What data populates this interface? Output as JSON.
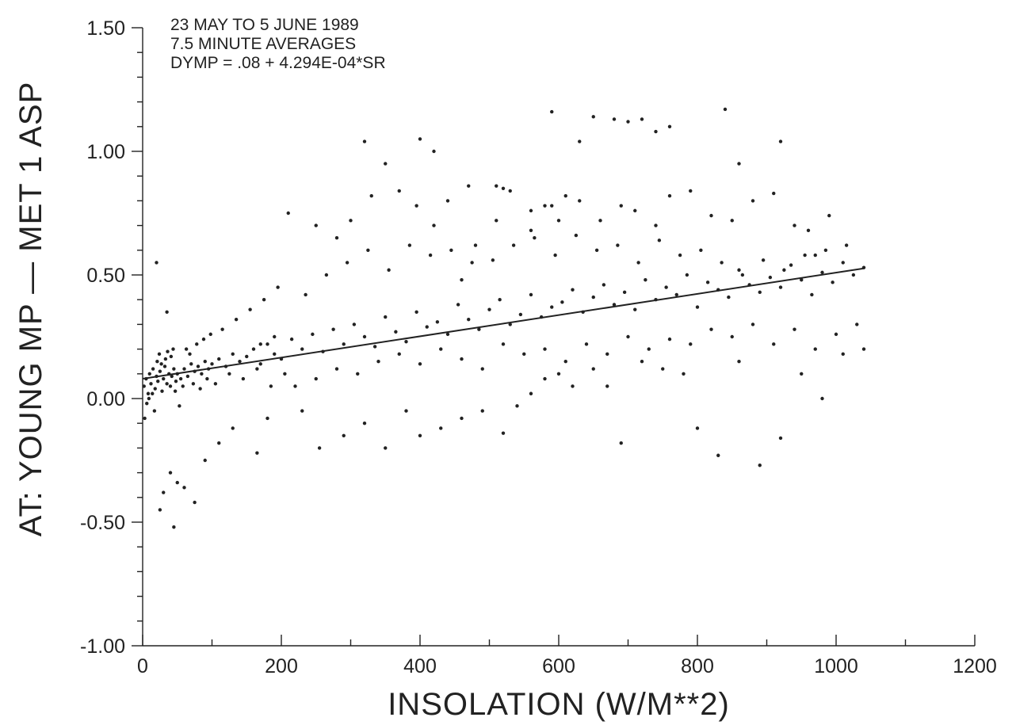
{
  "chart_data": {
    "type": "scatter",
    "xlabel": "INSOLATION (W/M**2)",
    "ylabel": "AT: YOUNG MP — MET 1 ASP",
    "annotations": [
      "23 MAY TO 5 JUNE 1989",
      "7.5 MINUTE AVERAGES",
      "DYMP = .08 + 4.294E-04*SR"
    ],
    "xlim": [
      0,
      1200
    ],
    "ylim": [
      -1.0,
      1.5
    ],
    "x_ticks": [
      0,
      200,
      400,
      600,
      800,
      1000,
      1200
    ],
    "x_tick_labels": [
      "0",
      "200",
      "400",
      "600",
      "800",
      "1000",
      "1200"
    ],
    "y_ticks": [
      -1.0,
      -0.5,
      0.0,
      0.5,
      1.0,
      1.5
    ],
    "y_tick_labels": [
      "-1.00",
      "-0.50",
      "0.00",
      "0.50",
      "1.00",
      "1.50"
    ],
    "grid": false,
    "regression": {
      "intercept": 0.08,
      "slope": 0.0004294,
      "x_range": [
        0,
        1040
      ]
    },
    "points_x": [
      2,
      5,
      8,
      10,
      12,
      15,
      18,
      20,
      22,
      25,
      28,
      30,
      32,
      35,
      38,
      40,
      42,
      45,
      48,
      50,
      55,
      60,
      65,
      70,
      75,
      80,
      85,
      90,
      95,
      100,
      110,
      120,
      130,
      140,
      150,
      160,
      170,
      180,
      190,
      200,
      215,
      230,
      245,
      260,
      275,
      290,
      305,
      320,
      335,
      350,
      365,
      380,
      395,
      410,
      425,
      440,
      455,
      470,
      485,
      500,
      515,
      530,
      545,
      560,
      575,
      590,
      605,
      620,
      635,
      650,
      665,
      680,
      695,
      710,
      725,
      740,
      755,
      770,
      785,
      800,
      815,
      830,
      845,
      860,
      875,
      890,
      905,
      920,
      935,
      950,
      965,
      980,
      995,
      1010,
      1025,
      1040,
      3,
      6,
      9,
      14,
      17,
      21,
      24,
      27,
      33,
      36,
      41,
      44,
      47,
      53,
      58,
      63,
      68,
      73,
      78,
      83,
      88,
      93,
      98,
      105,
      115,
      125,
      135,
      145,
      155,
      165,
      175,
      185,
      195,
      205,
      220,
      235,
      250,
      265,
      280,
      295,
      310,
      325,
      340,
      355,
      370,
      385,
      400,
      415,
      430,
      445,
      460,
      475,
      490,
      505,
      520,
      535,
      550,
      565,
      580,
      595,
      610,
      625,
      640,
      655,
      670,
      685,
      700,
      715,
      730,
      745,
      760,
      775,
      790,
      805,
      820,
      835,
      850,
      865,
      880,
      895,
      910,
      925,
      940,
      955,
      970,
      985,
      1000,
      1015,
      1030,
      20,
      35,
      50,
      30,
      45,
      25,
      40,
      60,
      75,
      90,
      110,
      130,
      165,
      180,
      230,
      255,
      290,
      320,
      350,
      380,
      400,
      430,
      460,
      490,
      520,
      540,
      560,
      580,
      600,
      620,
      650,
      670,
      690,
      720,
      750,
      780,
      800,
      830,
      860,
      890,
      920,
      950,
      980,
      1010,
      1040,
      170,
      190,
      210,
      250,
      280,
      300,
      330,
      370,
      395,
      420,
      440,
      470,
      510,
      530,
      560,
      590,
      610,
      630,
      660,
      690,
      710,
      740,
      760,
      790,
      820,
      850,
      880,
      910,
      940,
      960,
      990,
      510,
      560,
      590,
      650,
      700,
      760,
      840,
      320,
      400,
      480,
      580,
      630,
      720,
      350,
      420,
      460,
      520,
      600,
      680,
      740,
      860,
      920,
      970
    ],
    "points_y": [
      0.05,
      0.08,
      0.02,
      0.1,
      0.06,
      0.12,
      0.04,
      0.09,
      0.07,
      0.11,
      0.03,
      0.08,
      0.13,
      0.06,
      0.1,
      0.05,
      0.09,
      0.12,
      0.07,
      0.1,
      0.08,
      0.12,
      0.09,
      0.14,
      0.11,
      0.13,
      0.1,
      0.15,
      0.12,
      0.14,
      0.16,
      0.13,
      0.18,
      0.15,
      0.17,
      0.2,
      0.14,
      0.22,
      0.18,
      0.16,
      0.24,
      0.2,
      0.26,
      0.19,
      0.28,
      0.22,
      0.3,
      0.25,
      0.21,
      0.33,
      0.27,
      0.23,
      0.35,
      0.29,
      0.31,
      0.26,
      0.38,
      0.32,
      0.28,
      0.36,
      0.4,
      0.3,
      0.34,
      0.42,
      0.33,
      0.37,
      0.39,
      0.44,
      0.35,
      0.41,
      0.46,
      0.38,
      0.43,
      0.36,
      0.48,
      0.4,
      0.45,
      0.42,
      0.5,
      0.37,
      0.47,
      0.44,
      0.41,
      0.52,
      0.46,
      0.43,
      0.49,
      0.45,
      0.54,
      0.48,
      0.42,
      0.51,
      0.47,
      0.55,
      0.5,
      0.53,
      -0.08,
      -0.02,
      0.0,
      0.02,
      -0.05,
      0.15,
      0.18,
      0.14,
      0.16,
      0.19,
      0.17,
      0.2,
      0.03,
      -0.03,
      0.05,
      0.2,
      0.18,
      0.06,
      0.22,
      0.04,
      0.24,
      0.08,
      0.26,
      0.06,
      0.28,
      0.1,
      0.32,
      0.08,
      0.36,
      0.12,
      0.4,
      0.05,
      0.45,
      0.1,
      0.05,
      0.42,
      0.08,
      0.5,
      0.12,
      0.55,
      0.1,
      0.6,
      0.15,
      0.52,
      0.18,
      0.62,
      0.14,
      0.58,
      0.2,
      0.6,
      0.16,
      0.55,
      0.12,
      0.56,
      0.22,
      0.62,
      0.18,
      0.65,
      0.2,
      0.58,
      0.15,
      0.66,
      0.22,
      0.6,
      0.18,
      0.62,
      0.25,
      0.55,
      0.2,
      0.64,
      0.24,
      0.58,
      0.22,
      0.6,
      0.28,
      0.55,
      0.25,
      0.5,
      0.3,
      0.56,
      0.22,
      0.52,
      0.28,
      0.58,
      0.2,
      0.6,
      0.26,
      0.62,
      0.3,
      0.55,
      0.35,
      -0.34,
      -0.38,
      -0.52,
      -0.45,
      -0.3,
      -0.36,
      -0.42,
      -0.25,
      -0.18,
      -0.12,
      -0.22,
      -0.08,
      -0.05,
      -0.2,
      -0.15,
      -0.1,
      -0.2,
      -0.05,
      -0.15,
      -0.12,
      -0.08,
      -0.05,
      -0.14,
      -0.03,
      0.02,
      0.08,
      0.1,
      0.05,
      0.12,
      0.05,
      -0.18,
      0.15,
      0.12,
      0.1,
      -0.12,
      -0.23,
      0.15,
      -0.27,
      -0.16,
      0.1,
      0.0,
      0.18,
      0.2,
      0.22,
      0.25,
      0.75,
      0.7,
      0.65,
      0.72,
      0.82,
      0.84,
      0.78,
      0.7,
      0.8,
      0.86,
      0.86,
      0.84,
      0.76,
      0.78,
      0.82,
      0.8,
      0.72,
      0.78,
      0.76,
      0.7,
      0.82,
      0.84,
      0.74,
      0.72,
      0.8,
      0.83,
      0.7,
      0.68,
      0.74,
      0.72,
      0.68,
      1.16,
      1.14,
      1.12,
      1.1,
      1.17,
      1.04,
      1.05,
      0.62,
      0.78,
      1.04,
      1.13,
      0.95,
      1.0,
      0.48,
      0.85,
      0.72,
      1.13,
      1.08,
      0.95,
      1.04,
      0.58,
      0.6,
      0.4
    ]
  }
}
